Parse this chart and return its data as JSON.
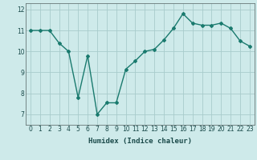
{
  "x": [
    0,
    1,
    2,
    3,
    4,
    5,
    6,
    7,
    8,
    9,
    10,
    11,
    12,
    13,
    14,
    15,
    16,
    17,
    18,
    19,
    20,
    21,
    22,
    23
  ],
  "y": [
    11.0,
    11.0,
    11.0,
    10.4,
    10.0,
    7.8,
    9.8,
    7.0,
    7.55,
    7.55,
    9.15,
    9.55,
    10.0,
    10.1,
    10.55,
    11.1,
    11.8,
    11.35,
    11.25,
    11.25,
    11.35,
    11.1,
    10.5,
    10.25
  ],
  "line_color": "#1a7a6e",
  "marker": "D",
  "marker_size": 2.0,
  "bg_color": "#ceeaea",
  "grid_color": "#a8cccc",
  "xlabel": "Humidex (Indice chaleur)",
  "ylim": [
    6.5,
    12.3
  ],
  "xlim": [
    -0.5,
    23.5
  ],
  "yticks": [
    7,
    8,
    9,
    10,
    11,
    12
  ],
  "xticks": [
    0,
    1,
    2,
    3,
    4,
    5,
    6,
    7,
    8,
    9,
    10,
    11,
    12,
    13,
    14,
    15,
    16,
    17,
    18,
    19,
    20,
    21,
    22,
    23
  ],
  "tick_fontsize": 5.5,
  "xlabel_fontsize": 6.5,
  "line_width": 1.0
}
